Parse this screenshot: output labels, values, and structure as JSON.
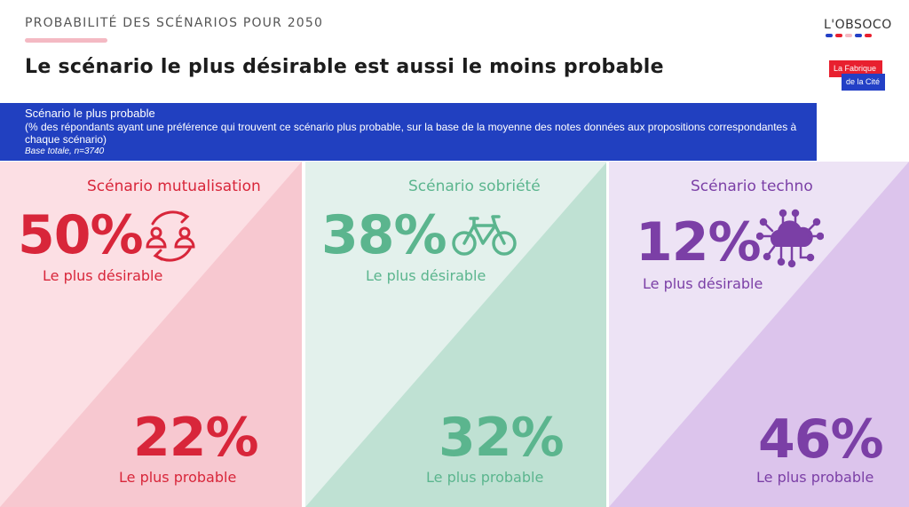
{
  "header": {
    "kicker": "PROBABILITÉ DES SCÉNARIOS POUR 2050",
    "title": "Le scénario le plus désirable est aussi le moins probable"
  },
  "logos": {
    "obsoco": "L'OBSOCO",
    "fabrique_line1": "La Fabrique",
    "fabrique_line2": "de la Cité"
  },
  "band": {
    "title": "Scénario le plus probable",
    "description": "(% des répondants ayant une préférence qui trouvent ce scénario plus probable, sur la base de la moyenne des notes données aux propositions correspondantes à chaque scénario)",
    "base": "Base totale, n=3740"
  },
  "colors": {
    "mutualisation": "#d8263a",
    "sobriete": "#5bb58e",
    "techno": "#7b3fa6",
    "band": "#2140c0"
  },
  "icons": {
    "mutualisation": "people-exchange-icon",
    "sobriete": "bicycle-icon",
    "techno": "cloud-network-icon"
  },
  "chart_data": {
    "type": "table",
    "title": "Le scénario le plus désirable est aussi le moins probable",
    "categories": [
      "Scénario mutualisation",
      "Scénario sobriété",
      "Scénario techno"
    ],
    "series": [
      {
        "name": "Le plus désirable",
        "values": [
          50,
          38,
          12
        ],
        "labels": [
          "50%",
          "38%",
          "12%"
        ]
      },
      {
        "name": "Le plus probable",
        "values": [
          22,
          32,
          46
        ],
        "labels": [
          "22%",
          "32%",
          "46%"
        ]
      }
    ]
  }
}
